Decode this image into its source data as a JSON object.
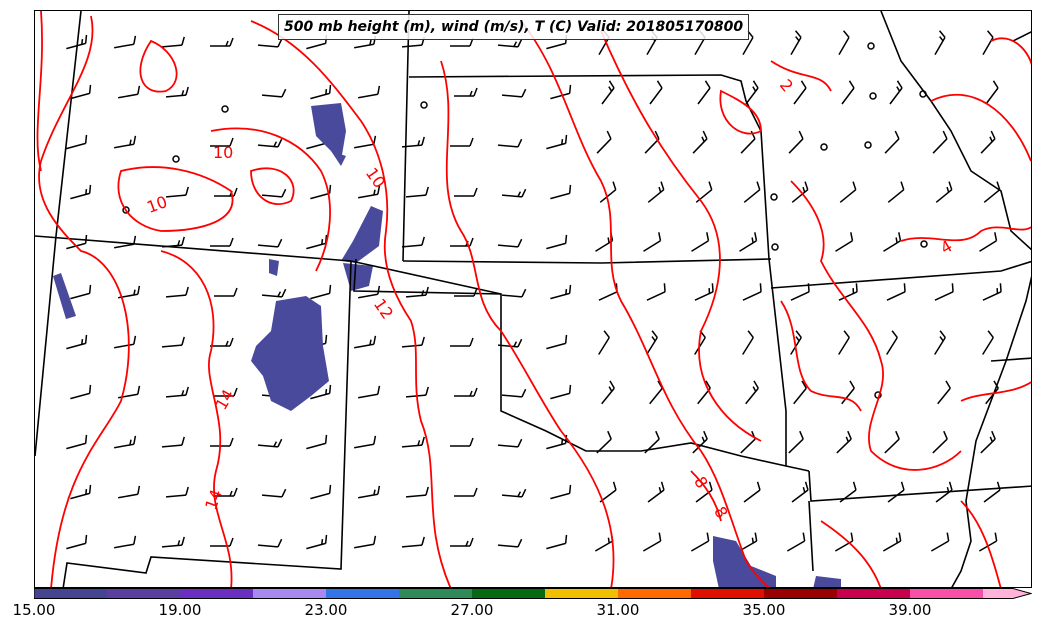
{
  "title": "500 mb height (m), wind (m/s), T (C) Valid: 201805170800",
  "contour_color": "#ff0000",
  "fill_color": "#4a4a9c",
  "contour_labels": [
    "10",
    "10",
    "10",
    "12",
    "14",
    "14",
    "8",
    "8",
    "4",
    "2"
  ],
  "colorbar": {
    "ticks": [
      "15.00",
      "19.00",
      "23.00",
      "27.00",
      "31.00",
      "35.00",
      "39.00"
    ],
    "colors": [
      "#444491",
      "#5b3fa0",
      "#6a2fc0",
      "#a889f0",
      "#3375e6",
      "#2e8b57",
      "#056a12",
      "#f0c000",
      "#ff6a00",
      "#e01000",
      "#990000",
      "#c8004d",
      "#f850a8",
      "#ffb3da"
    ]
  },
  "icons": [
    "wind-barb-icon",
    "calm-circle-icon"
  ]
}
